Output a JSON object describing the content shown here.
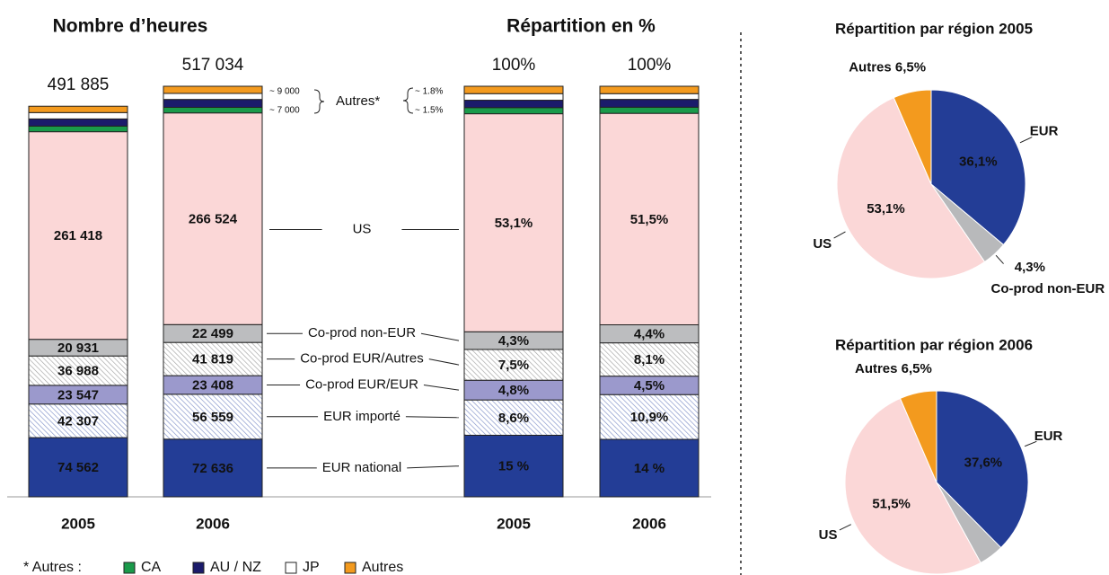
{
  "chart_data": [
    {
      "type": "bar",
      "stacked": true,
      "title": "Nombre d’heures",
      "categories": [
        "2005",
        "2006"
      ],
      "totals": [
        491885,
        517034
      ],
      "total_labels": [
        "491 885",
        "517 034"
      ],
      "series": [
        {
          "name": "EUR national",
          "color": "#233d96",
          "values": [
            74562,
            72636
          ],
          "value_labels": [
            "74 562",
            "72 636"
          ]
        },
        {
          "name": "EUR importé",
          "color": "#7f90c8",
          "pattern": "hatch",
          "values": [
            42307,
            56559
          ],
          "value_labels": [
            "42 307",
            "56 559"
          ]
        },
        {
          "name": "Co-prod EUR/EUR",
          "color": "#9b99cc",
          "values": [
            23547,
            23408
          ],
          "value_labels": [
            "23 547",
            "23 408"
          ]
        },
        {
          "name": "Co-prod EUR/Autres",
          "color": "#a3a3a3",
          "pattern": "hatch",
          "values": [
            36988,
            41819
          ],
          "value_labels": [
            "36 988",
            "41 819"
          ]
        },
        {
          "name": "Co-prod non-EUR",
          "color": "#bcbdbf",
          "values": [
            20931,
            22499
          ],
          "value_labels": [
            "20 931",
            "22 499"
          ]
        },
        {
          "name": "US",
          "color": "#fbd7d7",
          "values": [
            261418,
            266524
          ],
          "value_labels": [
            "261 418",
            "266 524"
          ]
        },
        {
          "name": "CA",
          "color": "#1a9a4a",
          "values": [
            7132,
            7000
          ]
        },
        {
          "name": "AU / NZ",
          "color": "#1b1b6b",
          "values": [
            9000,
            10000
          ]
        },
        {
          "name": "JP",
          "color": "#ffffff",
          "values": [
            8000,
            7589
          ]
        },
        {
          "name": "Autres",
          "color": "#f39a1e",
          "values": [
            8000,
            9000
          ]
        }
      ],
      "annotations": [
        "~ 9 000",
        "~ 7 000",
        "Autres*",
        "~ 1.8%",
        "~ 1.5%"
      ],
      "legend_title": "* Autres :"
    },
    {
      "type": "bar",
      "stacked": true,
      "title": "Répartition en %",
      "categories": [
        "2005",
        "2006"
      ],
      "totals": [
        100,
        100
      ],
      "total_labels": [
        "100%",
        "100%"
      ],
      "series": [
        {
          "name": "EUR national",
          "color": "#233d96",
          "values": [
            15,
            14
          ],
          "value_labels": [
            "15 %",
            "14 %"
          ]
        },
        {
          "name": "EUR importé",
          "color": "#7f90c8",
          "pattern": "hatch",
          "values": [
            8.6,
            10.9
          ],
          "value_labels": [
            "8,6%",
            "10,9%"
          ]
        },
        {
          "name": "Co-prod EUR/EUR",
          "color": "#9b99cc",
          "values": [
            4.8,
            4.5
          ],
          "value_labels": [
            "4,8%",
            "4,5%"
          ]
        },
        {
          "name": "Co-prod EUR/Autres",
          "color": "#a3a3a3",
          "pattern": "hatch",
          "values": [
            7.5,
            8.1
          ],
          "value_labels": [
            "7,5%",
            "8,1%"
          ]
        },
        {
          "name": "Co-prod non-EUR",
          "color": "#bcbdbf",
          "values": [
            4.3,
            4.4
          ],
          "value_labels": [
            "4,3%",
            "4,4%"
          ]
        },
        {
          "name": "US",
          "color": "#fbd7d7",
          "values": [
            53.1,
            51.5
          ],
          "value_labels": [
            "53,1%",
            "51,5%"
          ]
        },
        {
          "name": "CA",
          "color": "#1a9a4a",
          "values": [
            1.5,
            1.5
          ]
        },
        {
          "name": "AU / NZ",
          "color": "#1b1b6b",
          "values": [
            1.8,
            1.9
          ]
        },
        {
          "name": "JP",
          "color": "#ffffff",
          "values": [
            1.6,
            1.4
          ]
        },
        {
          "name": "Autres",
          "color": "#f39a1e",
          "values": [
            1.8,
            1.8
          ]
        }
      ]
    },
    {
      "type": "pie",
      "title": "Répartition par région 2005",
      "categories": [
        "EUR",
        "Co-prod non-EUR",
        "US",
        "Autres"
      ],
      "values": [
        36.1,
        4.3,
        53.1,
        6.5
      ],
      "value_labels": [
        "36,1%",
        "4,3%",
        "53,1%",
        "6,5%"
      ],
      "colors": [
        "#233d96",
        "#b8b9bb",
        "#fbd7d7",
        "#f39a1e"
      ]
    },
    {
      "type": "pie",
      "title": "Répartition par région 2006",
      "categories": [
        "EUR",
        null,
        "US",
        "Autres"
      ],
      "values": [
        37.6,
        4.4,
        51.5,
        6.5
      ],
      "value_labels": [
        "37,6%",
        null,
        "51,5%",
        "6,5%"
      ],
      "colors": [
        "#233d96",
        "#b8b9bb",
        "#fbd7d7",
        "#f39a1e"
      ]
    }
  ]
}
